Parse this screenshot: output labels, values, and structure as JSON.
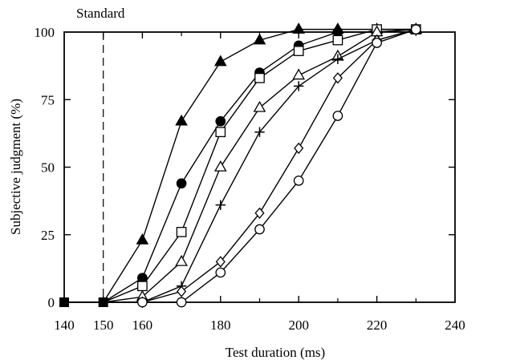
{
  "chart_data": {
    "type": "line",
    "title": "",
    "annotation": "Standard",
    "standard_x": 150,
    "xlabel": "Test duration (ms)",
    "ylabel": "Subjective judgment (%)",
    "xlim": [
      140,
      240
    ],
    "ylim": [
      0,
      100
    ],
    "xticks": [
      140,
      150,
      160,
      180,
      200,
      220,
      240
    ],
    "xticks_minor": [
      170,
      190,
      210,
      230
    ],
    "yticks": [
      0,
      25,
      50,
      75,
      100
    ],
    "grid": false,
    "legend": "none",
    "series": [
      {
        "marker": "filled-triangle",
        "x": [
          140,
          150,
          160,
          170,
          180,
          190,
          200,
          210,
          220,
          230
        ],
        "y": [
          0,
          0,
          23,
          67,
          89,
          97,
          101,
          101,
          101,
          101
        ]
      },
      {
        "marker": "filled-circle",
        "x": [
          140,
          150,
          160,
          170,
          180,
          190,
          200,
          210,
          220,
          230
        ],
        "y": [
          0,
          0,
          9,
          44,
          67,
          85,
          95,
          100,
          100,
          101
        ]
      },
      {
        "marker": "open-square",
        "x": [
          140,
          150,
          160,
          170,
          180,
          190,
          200,
          210,
          220,
          230
        ],
        "y": [
          0,
          0,
          6,
          26,
          63,
          83,
          93,
          97,
          101,
          101
        ]
      },
      {
        "marker": "open-triangle",
        "x": [
          140,
          150,
          160,
          170,
          180,
          190,
          200,
          210,
          220,
          230
        ],
        "y": [
          0,
          0,
          2,
          15,
          50,
          72,
          84,
          91,
          100,
          101
        ]
      },
      {
        "marker": "plus",
        "x": [
          140,
          150,
          160,
          170,
          180,
          190,
          200,
          210,
          220,
          230
        ],
        "y": [
          0,
          0,
          0,
          6,
          36,
          63,
          80,
          90,
          97,
          101
        ]
      },
      {
        "marker": "open-diamond",
        "x": [
          140,
          150,
          160,
          170,
          180,
          190,
          200,
          210,
          220,
          230
        ],
        "y": [
          0,
          0,
          0,
          4,
          15,
          33,
          57,
          83,
          97,
          101
        ]
      },
      {
        "marker": "open-circle",
        "x": [
          140,
          150,
          160,
          170,
          180,
          190,
          200,
          210,
          220,
          230
        ],
        "y": [
          0,
          0,
          0,
          0,
          11,
          27,
          45,
          69,
          96,
          101
        ]
      }
    ]
  }
}
